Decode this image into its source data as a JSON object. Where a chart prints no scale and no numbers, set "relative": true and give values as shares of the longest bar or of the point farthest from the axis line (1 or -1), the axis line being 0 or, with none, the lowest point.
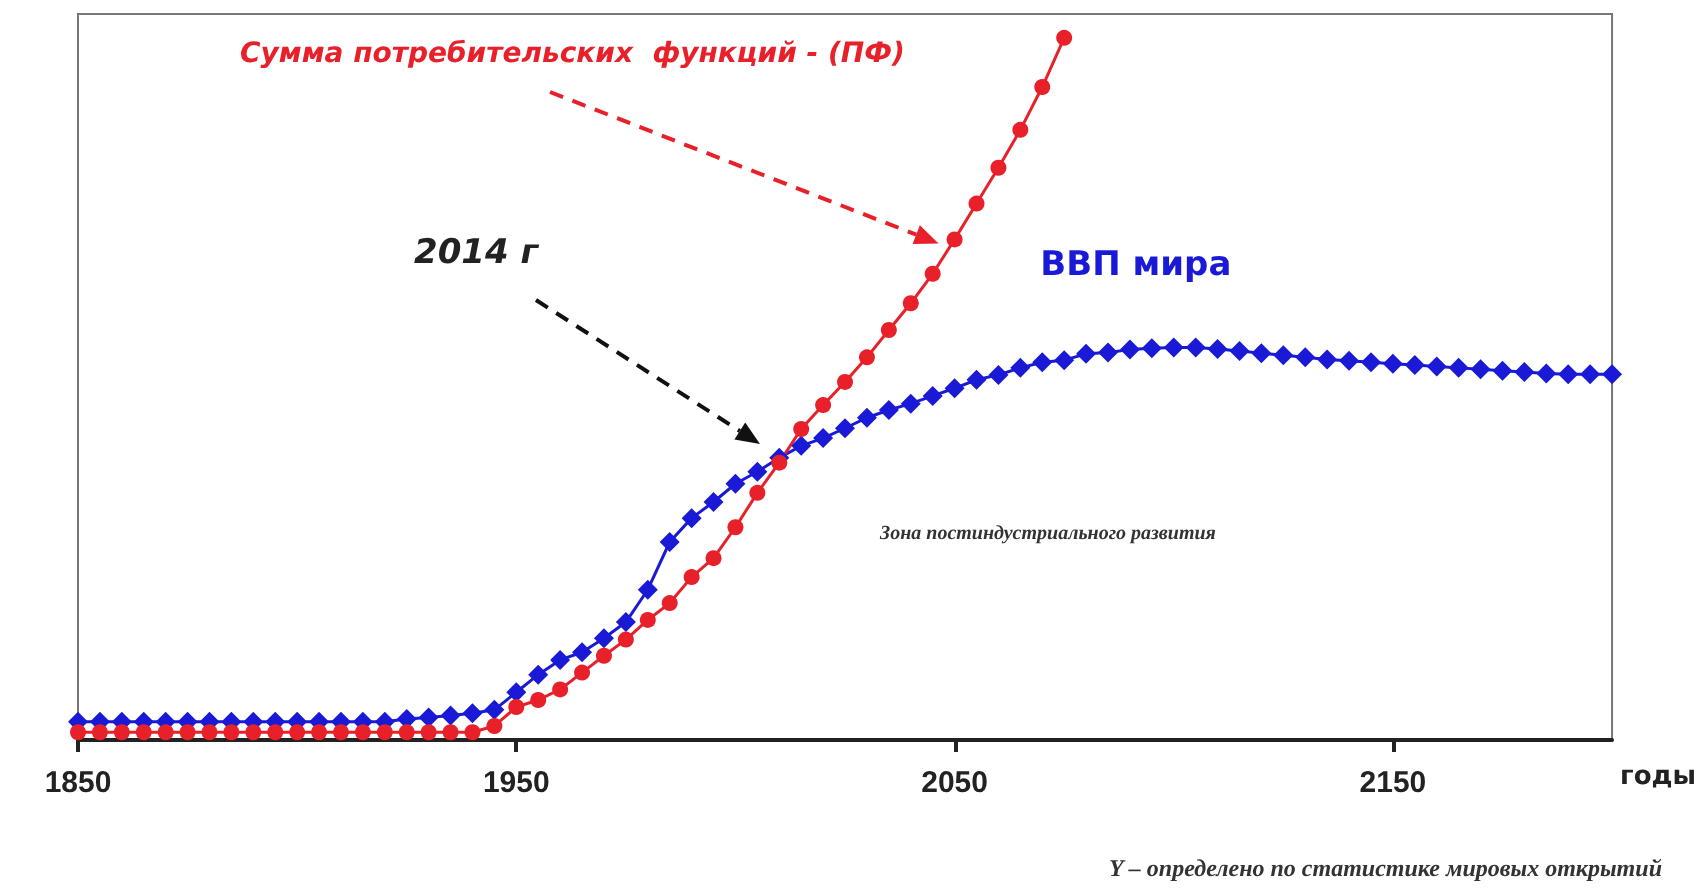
{
  "chart_data": {
    "type": "line",
    "relative": true,
    "xlabel": "годы",
    "xlim": [
      1850,
      2200
    ],
    "xticks": [
      1850,
      1950,
      2050,
      2150
    ],
    "grid": false,
    "legend": false,
    "line_style": "solid",
    "x": [
      1850,
      1855,
      1860,
      1865,
      1870,
      1875,
      1880,
      1885,
      1890,
      1895,
      1900,
      1905,
      1910,
      1915,
      1920,
      1925,
      1930,
      1935,
      1940,
      1945,
      1950,
      1955,
      1960,
      1965,
      1970,
      1975,
      1980,
      1985,
      1990,
      1995,
      2000,
      2005,
      2010,
      2015,
      2020,
      2025,
      2030,
      2035,
      2040,
      2045,
      2050,
      2055,
      2060,
      2065,
      2070,
      2075,
      2080,
      2085,
      2090,
      2095,
      2100,
      2105,
      2110,
      2115,
      2120,
      2125,
      2130,
      2135,
      2140,
      2145,
      2150,
      2155,
      2160,
      2165,
      2170,
      2175,
      2180,
      2185,
      2190,
      2195,
      2200
    ],
    "series": [
      {
        "name": "ВВП мира",
        "color": "#1a1ad6",
        "marker": "diamond",
        "values": [
          0.026,
          0.026,
          0.026,
          0.026,
          0.026,
          0.026,
          0.026,
          0.026,
          0.026,
          0.026,
          0.026,
          0.026,
          0.026,
          0.026,
          0.026,
          0.03,
          0.032,
          0.035,
          0.038,
          0.043,
          0.068,
          0.093,
          0.114,
          0.125,
          0.145,
          0.168,
          0.214,
          0.282,
          0.316,
          0.339,
          0.365,
          0.382,
          0.402,
          0.419,
          0.43,
          0.444,
          0.459,
          0.47,
          0.479,
          0.49,
          0.501,
          0.513,
          0.52,
          0.53,
          0.538,
          0.541,
          0.55,
          0.552,
          0.556,
          0.558,
          0.559,
          0.559,
          0.557,
          0.554,
          0.551,
          0.548,
          0.545,
          0.542,
          0.54,
          0.538,
          0.536,
          0.534,
          0.532,
          0.53,
          0.528,
          0.526,
          0.524,
          0.522,
          0.521,
          0.521,
          0.521
        ]
      },
      {
        "name": "Сумма потребительских  функций - (ПФ)",
        "color": "#e8202a",
        "marker": "circle",
        "x": [
          1850,
          1855,
          1860,
          1865,
          1870,
          1875,
          1880,
          1885,
          1890,
          1895,
          1900,
          1905,
          1910,
          1915,
          1920,
          1925,
          1930,
          1935,
          1940,
          1945,
          1950,
          1955,
          1960,
          1965,
          1970,
          1975,
          1980,
          1985,
          1990,
          1995,
          2000,
          2005,
          2010,
          2015,
          2020,
          2025,
          2030,
          2035,
          2040,
          2045,
          2050,
          2055,
          2060,
          2065,
          2070,
          2075
        ],
        "values": [
          0.011,
          0.011,
          0.011,
          0.011,
          0.011,
          0.011,
          0.011,
          0.011,
          0.011,
          0.011,
          0.011,
          0.011,
          0.011,
          0.011,
          0.011,
          0.011,
          0.011,
          0.011,
          0.011,
          0.02,
          0.047,
          0.057,
          0.072,
          0.096,
          0.12,
          0.143,
          0.171,
          0.195,
          0.232,
          0.259,
          0.303,
          0.352,
          0.395,
          0.443,
          0.477,
          0.51,
          0.545,
          0.584,
          0.622,
          0.664,
          0.713,
          0.764,
          0.815,
          0.869,
          0.93,
          1
        ]
      }
    ],
    "annotations": [
      "2014 г",
      "Зона постиндустриального развития",
      "Y – определено по статистике мировых открытий"
    ]
  }
}
